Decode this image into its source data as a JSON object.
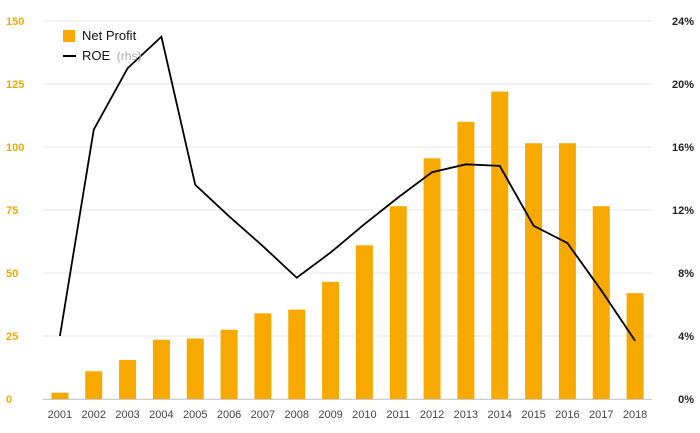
{
  "chart_data": {
    "type": "bar",
    "categories": [
      "2001",
      "2002",
      "2003",
      "2004",
      "2005",
      "2006",
      "2007",
      "2008",
      "2009",
      "2010",
      "2011",
      "2012",
      "2013",
      "2014",
      "2015",
      "2016",
      "2017",
      "2018"
    ],
    "series": [
      {
        "name": "Net Profit",
        "type": "bar",
        "axis": "left",
        "values": [
          2.5,
          11,
          15.5,
          23.5,
          24,
          27.5,
          34,
          35.5,
          46.5,
          61,
          76.5,
          95.5,
          110,
          122,
          101.5,
          101.5,
          76.5,
          42
        ]
      },
      {
        "name": "ROE",
        "name_suffix": "(rhs)",
        "type": "line",
        "axis": "right",
        "values": [
          4.0,
          17.1,
          21.0,
          23.0,
          13.6,
          11.6,
          9.7,
          7.7,
          9.3,
          11.1,
          12.8,
          14.4,
          14.9,
          14.8,
          11.0,
          9.9,
          6.9,
          3.7
        ]
      }
    ],
    "yleft": {
      "lim": [
        0,
        150
      ],
      "ticks": [
        "0",
        "25",
        "50",
        "75",
        "100",
        "125",
        "150"
      ],
      "tick_values": [
        0,
        25,
        50,
        75,
        100,
        125,
        150
      ]
    },
    "yright": {
      "lim": [
        0,
        24
      ],
      "ticks": [
        "0%",
        "4%",
        "8%",
        "12%",
        "16%",
        "20%",
        "24%"
      ],
      "tick_values": [
        0,
        4,
        8,
        12,
        16,
        20,
        24
      ]
    },
    "grid": true,
    "legend_position": "top-left",
    "colors": {
      "bar": "#f7a900",
      "line": "#000000",
      "left_ticks": "#f2a900",
      "right_ticks": "#222222",
      "grid": "#e6e6e6"
    }
  }
}
